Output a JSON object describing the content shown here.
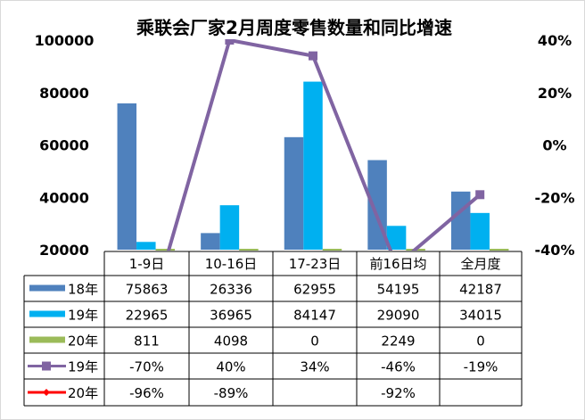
{
  "chart_data": {
    "type": "bar+line",
    "title": "乘联会厂家2月周度零售数量和同比增速",
    "categories": [
      "1-9日",
      "10-16日",
      "17-23日",
      "前16日均",
      "全月度"
    ],
    "y_left": {
      "range": [
        20000,
        100000
      ],
      "ticks": [
        "20000",
        "40000",
        "60000",
        "80000",
        "100000"
      ]
    },
    "y_right": {
      "range": [
        -40,
        40
      ],
      "ticks": [
        "-40%",
        "-20%",
        "0%",
        "20%",
        "40%"
      ]
    },
    "bar_series": [
      {
        "name": "18年",
        "color": "#4f81bd",
        "values": [
          75863,
          26336,
          62955,
          54195,
          42187
        ],
        "labels": [
          "75863",
          "26336",
          "62955",
          "54195",
          "42187"
        ]
      },
      {
        "name": "19年",
        "color": "#00b0f0",
        "values": [
          22965,
          36965,
          84147,
          29090,
          34015
        ],
        "labels": [
          "22965",
          "36965",
          "84147",
          "29090",
          "34015"
        ]
      },
      {
        "name": "20年",
        "color": "#9bbb59",
        "values": [
          811,
          4098,
          0,
          2249,
          0
        ],
        "labels": [
          "811",
          "4098",
          "0",
          "2249",
          "0"
        ]
      }
    ],
    "line_series": [
      {
        "name": "19年",
        "color": "#8064a2",
        "marker": "square",
        "values": [
          -70,
          40,
          34,
          -46,
          -19
        ],
        "labels": [
          "-70%",
          "40%",
          "34%",
          "-46%",
          "-19%"
        ]
      },
      {
        "name": "20年",
        "color": "#ff0000",
        "marker": "diamond",
        "values": [
          -96,
          -89,
          null,
          -92,
          null
        ],
        "labels": [
          "-96%",
          "-89%",
          "",
          "-92%",
          ""
        ]
      }
    ],
    "grid": false,
    "legend": "data-table"
  }
}
